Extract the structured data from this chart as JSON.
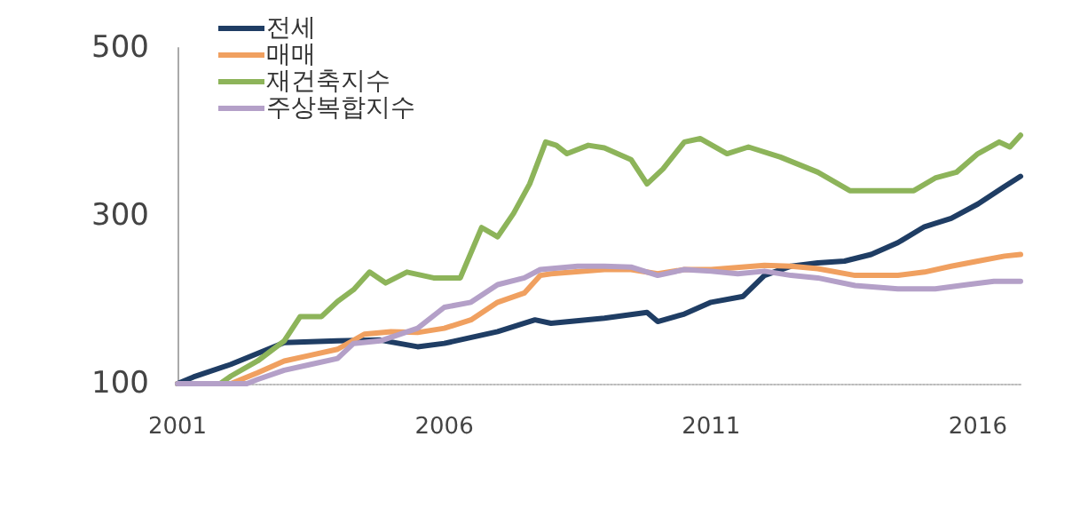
{
  "chart_data": {
    "type": "line",
    "xlim": [
      2001,
      2016.8
    ],
    "xticks": [
      2001,
      2006,
      2011,
      2016
    ],
    "ylim": [
      100,
      500
    ],
    "yticks": [
      100,
      300,
      500
    ],
    "legend": "top left",
    "marker": "none",
    "series": [
      {
        "name": "전세",
        "color": "#1f3d64",
        "x": [
          2001,
          2001.3,
          2002,
          2003,
          2004,
          2004.8,
          2005.5,
          2006,
          2007,
          2007.7,
          2008,
          2009,
          2009.8,
          2010,
          2010.5,
          2011,
          2011.6,
          2012,
          2012.5,
          2013,
          2013.5,
          2014,
          2014.5,
          2015,
          2015.5,
          2016,
          2016.5,
          2016.8
        ],
        "values": [
          100,
          108,
          123,
          149,
          151,
          152,
          144,
          148,
          162,
          176,
          172,
          178,
          185,
          174,
          183,
          197,
          204,
          229,
          240,
          244,
          246,
          254,
          268,
          287,
          297,
          314,
          335,
          347
        ]
      },
      {
        "name": "매매",
        "color": "#f0a060",
        "x": [
          2001,
          2002,
          2002.5,
          2003,
          2003.5,
          2004,
          2004.5,
          2005,
          2005.5,
          2006,
          2006.5,
          2007,
          2007.5,
          2007.8,
          2008,
          2009,
          2009.5,
          2010,
          2010.5,
          2011,
          2012,
          2012.5,
          2013,
          2013.7,
          2014.5,
          2015,
          2015.5,
          2016,
          2016.5,
          2016.8
        ],
        "values": [
          100,
          100,
          113,
          127,
          134,
          141,
          159,
          162,
          161,
          166,
          176,
          197,
          208,
          229,
          231,
          236,
          236,
          231,
          236,
          236,
          241,
          240,
          237,
          229,
          229,
          233,
          240,
          246,
          252,
          254
        ]
      },
      {
        "name": "재건축지수",
        "color": "#8db45a",
        "x": [
          2001,
          2001.8,
          2002,
          2002.5,
          2003,
          2003.3,
          2003.7,
          2004,
          2004.3,
          2004.6,
          2004.9,
          2005.3,
          2005.8,
          2006.3,
          2006.7,
          2007,
          2007.3,
          2007.6,
          2007.9,
          2008.1,
          2008.3,
          2008.7,
          2009,
          2009.5,
          2009.8,
          2010.1,
          2010.5,
          2010.8,
          2011.3,
          2011.7,
          2012.3,
          2013,
          2013.6,
          2014.3,
          2014.8,
          2015.2,
          2015.6,
          2016,
          2016.4,
          2016.6,
          2016.8
        ],
        "values": [
          100,
          100,
          109,
          127,
          151,
          180,
          180,
          198,
          212,
          233,
          220,
          233,
          226,
          226,
          286,
          275,
          303,
          338,
          388,
          384,
          374,
          384,
          381,
          367,
          338,
          356,
          388,
          392,
          374,
          382,
          370,
          352,
          330,
          330,
          330,
          345,
          352,
          374,
          388,
          382,
          396
        ]
      },
      {
        "name": "주상복합지수",
        "color": "#b4a0c8",
        "x": [
          2001,
          2002.3,
          2002.5,
          2003,
          2003.5,
          2004,
          2004.3,
          2004.8,
          2005.5,
          2006,
          2006.5,
          2007,
          2007.5,
          2007.8,
          2008.5,
          2009,
          2009.5,
          2010,
          2010.5,
          2011,
          2011.5,
          2012,
          2012.5,
          2013,
          2013.7,
          2014.5,
          2015.2,
          2015.8,
          2016.3,
          2016.8
        ],
        "values": [
          100,
          100,
          105,
          116,
          123,
          130,
          148,
          151,
          166,
          191,
          197,
          218,
          226,
          236,
          240,
          240,
          239,
          229,
          236,
          234,
          231,
          234,
          229,
          226,
          217,
          213,
          213,
          218,
          222,
          222
        ]
      }
    ]
  }
}
